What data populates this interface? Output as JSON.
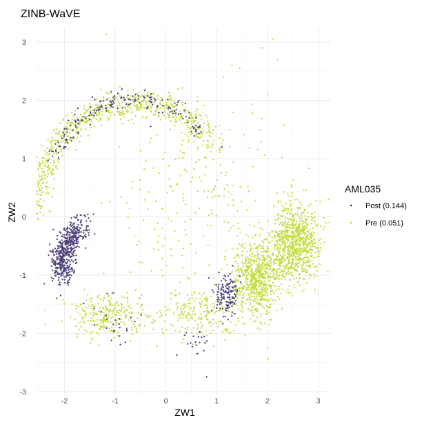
{
  "chart_data": {
    "type": "scatter",
    "title": "ZINB-WaVE",
    "xlabel": "ZW1",
    "ylabel": "ZW2",
    "xlim": [
      -2.55,
      3.25
    ],
    "ylim": [
      -3.05,
      3.25
    ],
    "x_ticks": [
      -2,
      -1,
      0,
      1,
      2,
      3
    ],
    "y_ticks": [
      -3,
      -2,
      -1,
      0,
      1,
      2,
      3
    ],
    "grid": true,
    "legend": {
      "title": "AML035",
      "placement": "right"
    },
    "series": [
      {
        "name": "Post (0.144)",
        "color": "#4b3d73",
        "clusters": [
          {
            "kind": "arc",
            "count": 520,
            "cx": -0.25,
            "cy": -0.8,
            "rx": 1.8,
            "ry": 1.0,
            "start_angle_deg": 140,
            "end_angle_deg": 190,
            "jitter": 0.11
          },
          {
            "kind": "arc",
            "count": 180,
            "cx": -0.6,
            "cy": 0.05,
            "rx": 1.9,
            "ry": 1.95,
            "start_angle_deg": 46,
            "end_angle_deg": 152,
            "jitter": 0.08
          },
          {
            "kind": "blob",
            "count": 140,
            "cx": 1.2,
            "cy": -1.35,
            "sx": 0.13,
            "sy": 0.18
          },
          {
            "kind": "blob",
            "count": 25,
            "cx": -1.0,
            "cy": -1.85,
            "sx": 0.25,
            "sy": 0.2
          },
          {
            "kind": "blob",
            "count": 20,
            "cx": 0.55,
            "cy": -2.15,
            "sx": 0.18,
            "sy": 0.12
          },
          {
            "kind": "points",
            "points": [
              [
                0.8,
                -2.75
              ],
              [
                1.1,
                1.2
              ],
              [
                -0.3,
                1.55
              ],
              [
                -2.4,
                -1.15
              ],
              [
                -2.15,
                -1.4
              ]
            ]
          }
        ]
      },
      {
        "name": "Pre (0.051)",
        "color": "#c1dd3d",
        "clusters": [
          {
            "kind": "arc",
            "count": 700,
            "cx": -0.6,
            "cy": 0.05,
            "rx": 1.95,
            "ry": 1.9,
            "start_angle_deg": 40,
            "end_angle_deg": 178,
            "jitter": 0.12
          },
          {
            "kind": "blob",
            "count": 850,
            "cx": 2.55,
            "cy": -0.45,
            "sx": 0.22,
            "sy": 0.33
          },
          {
            "kind": "blob",
            "count": 650,
            "cx": 1.8,
            "cy": -1.05,
            "sx": 0.22,
            "sy": 0.32
          },
          {
            "kind": "blob",
            "count": 220,
            "cx": 0.65,
            "cy": -1.65,
            "sx": 0.45,
            "sy": 0.25
          },
          {
            "kind": "blob",
            "count": 250,
            "cx": -1.2,
            "cy": -1.7,
            "sx": 0.35,
            "sy": 0.18
          },
          {
            "kind": "blob",
            "count": 240,
            "cx": 0.65,
            "cy": 0.35,
            "sx": 0.8,
            "sy": 0.95
          },
          {
            "kind": "points",
            "points": [
              [
                2.1,
                3.05
              ],
              [
                2.2,
                2.7
              ],
              [
                1.9,
                2.9
              ],
              [
                2.0,
                -2.25
              ],
              [
                1.45,
                2.55
              ],
              [
                1.3,
                2.6
              ]
            ]
          }
        ]
      }
    ]
  }
}
